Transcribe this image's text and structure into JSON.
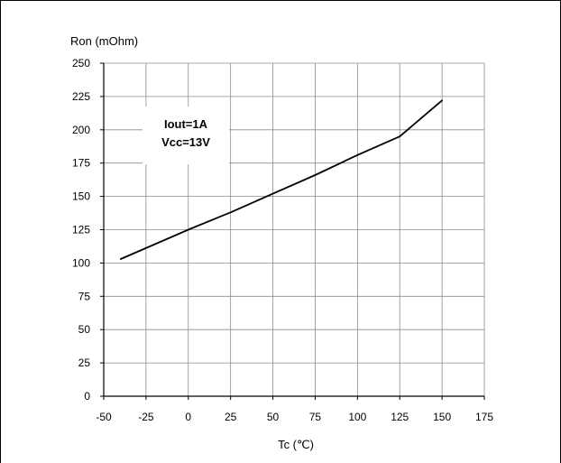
{
  "chart_data": {
    "type": "line",
    "title": "",
    "xlabel": "Tc (℃)",
    "ylabel": "Ron (mOhm)",
    "xlim": [
      -50,
      175
    ],
    "ylim": [
      0,
      250
    ],
    "x_ticks": [
      -50,
      -25,
      0,
      25,
      50,
      75,
      100,
      125,
      150,
      175
    ],
    "y_ticks": [
      0,
      25,
      50,
      75,
      100,
      125,
      150,
      175,
      200,
      225,
      250
    ],
    "grid": true,
    "series": [
      {
        "x": [
          -40,
          0,
          25,
          50,
          75,
          100,
          125,
          150
        ],
        "y": [
          103,
          125,
          138,
          152,
          166,
          181,
          195,
          222
        ]
      }
    ],
    "annotation": {
      "lines": [
        "Iout=1A",
        "Vcc=13V"
      ]
    }
  }
}
